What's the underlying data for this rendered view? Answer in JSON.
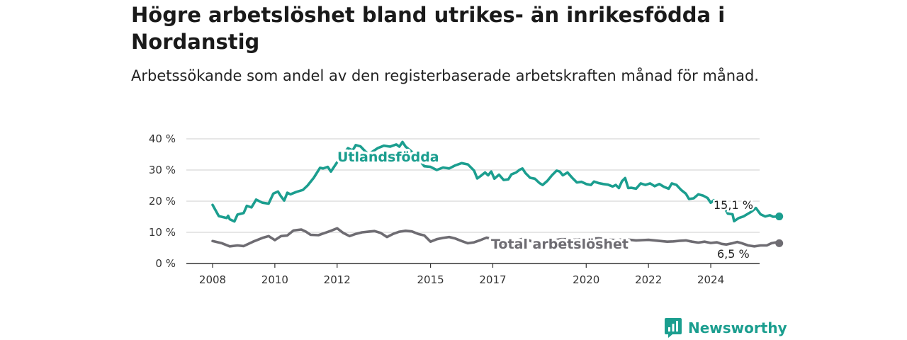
{
  "title": "Högre arbetslöshet bland utrikes- än inrikesfödda i Nordanstig",
  "subtitle": "Arbetssökande som andel av den registerbaserade arbetskraften månad för månad.",
  "brand": "Newsworthy",
  "colors": {
    "foreign_born": "#1b9e8f",
    "total": "#6e6c72",
    "grid": "#d6d6d6",
    "axis": "#333333"
  },
  "chart_data": {
    "type": "line",
    "y_ticks": [
      0,
      10,
      20,
      30,
      40
    ],
    "y_tick_labels": [
      "0 %",
      "10 %",
      "20 %",
      "30 %",
      "40 %"
    ],
    "x_ticks": [
      2008,
      2010,
      2012,
      2015,
      2017,
      2020,
      2022,
      2024
    ],
    "ylim": [
      0,
      40
    ],
    "xlim": [
      2007.25,
      2025.1
    ],
    "grid": true,
    "series": [
      {
        "name": "Utlandsfödda",
        "end_label": "15,1 %",
        "points": [
          [
            2008.0,
            18.8
          ],
          [
            2008.2,
            15.2
          ],
          [
            2008.45,
            14.6
          ],
          [
            2008.5,
            15.3
          ],
          [
            2008.55,
            14.2
          ],
          [
            2008.7,
            13.5
          ],
          [
            2008.8,
            15.7
          ],
          [
            2009.0,
            16.2
          ],
          [
            2009.1,
            18.5
          ],
          [
            2009.25,
            18.0
          ],
          [
            2009.4,
            20.5
          ],
          [
            2009.6,
            19.5
          ],
          [
            2009.8,
            19.2
          ],
          [
            2009.95,
            22.4
          ],
          [
            2010.1,
            23.1
          ],
          [
            2010.2,
            21.5
          ],
          [
            2010.3,
            20.2
          ],
          [
            2010.4,
            22.7
          ],
          [
            2010.5,
            22.2
          ],
          [
            2010.7,
            23.0
          ],
          [
            2010.9,
            23.6
          ],
          [
            2011.05,
            25.0
          ],
          [
            2011.25,
            27.5
          ],
          [
            2011.45,
            30.7
          ],
          [
            2011.55,
            30.5
          ],
          [
            2011.7,
            31.0
          ],
          [
            2011.8,
            29.5
          ],
          [
            2012.0,
            32.5
          ],
          [
            2012.2,
            35.1
          ],
          [
            2012.35,
            37.0
          ],
          [
            2012.5,
            36.3
          ],
          [
            2012.6,
            38.0
          ],
          [
            2012.75,
            37.6
          ],
          [
            2013.0,
            35.0
          ],
          [
            2013.3,
            37.0
          ],
          [
            2013.5,
            37.8
          ],
          [
            2013.7,
            37.5
          ],
          [
            2013.9,
            38.2
          ],
          [
            2014.0,
            37.5
          ],
          [
            2014.1,
            39.0
          ],
          [
            2014.2,
            37.5
          ],
          [
            2014.5,
            35.0
          ],
          [
            2014.8,
            31.2
          ],
          [
            2015.0,
            31.0
          ],
          [
            2015.2,
            30.0
          ],
          [
            2015.4,
            30.8
          ],
          [
            2015.6,
            30.5
          ],
          [
            2015.8,
            31.5
          ],
          [
            2016.0,
            32.2
          ],
          [
            2016.2,
            31.8
          ],
          [
            2016.4,
            29.8
          ],
          [
            2016.5,
            27.3
          ],
          [
            2016.6,
            28.0
          ],
          [
            2016.75,
            29.2
          ],
          [
            2016.85,
            28.3
          ],
          [
            2016.95,
            29.5
          ],
          [
            2017.05,
            27.2
          ],
          [
            2017.2,
            28.5
          ],
          [
            2017.35,
            26.8
          ],
          [
            2017.5,
            27.0
          ],
          [
            2017.6,
            28.6
          ],
          [
            2017.75,
            29.2
          ],
          [
            2017.85,
            30.0
          ],
          [
            2017.95,
            30.5
          ],
          [
            2018.05,
            29.0
          ],
          [
            2018.2,
            27.5
          ],
          [
            2018.35,
            27.2
          ],
          [
            2018.5,
            25.8
          ],
          [
            2018.6,
            25.2
          ],
          [
            2018.75,
            26.5
          ],
          [
            2018.9,
            28.3
          ],
          [
            2019.05,
            29.8
          ],
          [
            2019.15,
            29.5
          ],
          [
            2019.25,
            28.3
          ],
          [
            2019.4,
            29.2
          ],
          [
            2019.55,
            27.5
          ],
          [
            2019.7,
            26.0
          ],
          [
            2019.85,
            26.2
          ],
          [
            2020.0,
            25.5
          ],
          [
            2020.15,
            25.2
          ],
          [
            2020.25,
            26.3
          ],
          [
            2020.4,
            25.8
          ],
          [
            2020.55,
            25.5
          ],
          [
            2020.7,
            25.3
          ],
          [
            2020.85,
            24.7
          ],
          [
            2020.95,
            25.2
          ],
          [
            2021.05,
            24.2
          ],
          [
            2021.15,
            26.4
          ],
          [
            2021.25,
            27.4
          ],
          [
            2021.35,
            24.2
          ],
          [
            2021.45,
            24.3
          ],
          [
            2021.6,
            24.0
          ],
          [
            2021.75,
            25.7
          ],
          [
            2021.9,
            25.2
          ],
          [
            2022.05,
            25.7
          ],
          [
            2022.2,
            24.8
          ],
          [
            2022.35,
            25.5
          ],
          [
            2022.5,
            24.6
          ],
          [
            2022.65,
            24.0
          ],
          [
            2022.75,
            25.7
          ],
          [
            2022.9,
            25.2
          ],
          [
            2023.05,
            23.6
          ],
          [
            2023.2,
            22.4
          ],
          [
            2023.3,
            20.7
          ],
          [
            2023.45,
            20.9
          ],
          [
            2023.6,
            22.2
          ],
          [
            2023.75,
            21.8
          ],
          [
            2023.9,
            21.0
          ],
          [
            2024.0,
            19.5
          ],
          [
            2024.1,
            20.3
          ],
          [
            2024.3,
            17.6
          ],
          [
            2024.45,
            17.8
          ],
          [
            2024.55,
            16.0
          ],
          [
            2024.7,
            15.8
          ],
          [
            2024.75,
            13.6
          ],
          [
            2024.9,
            14.6
          ],
          [
            2025.05,
            15.1
          ],
          [
            2025.3,
            16.6
          ],
          [
            2025.45,
            17.8
          ],
          [
            2025.6,
            15.8
          ],
          [
            2025.75,
            15.1
          ],
          [
            2025.9,
            15.5
          ],
          [
            2026.0,
            15.0
          ],
          [
            2026.2,
            15.1
          ]
        ]
      },
      {
        "name": "Total arbetslöshet",
        "end_label": "6,5 %",
        "points": [
          [
            2008.0,
            7.2
          ],
          [
            2008.3,
            6.5
          ],
          [
            2008.55,
            5.5
          ],
          [
            2008.8,
            5.8
          ],
          [
            2009.0,
            5.6
          ],
          [
            2009.3,
            7.0
          ],
          [
            2009.6,
            8.2
          ],
          [
            2009.8,
            8.8
          ],
          [
            2010.0,
            7.5
          ],
          [
            2010.2,
            8.8
          ],
          [
            2010.4,
            9.0
          ],
          [
            2010.6,
            10.6
          ],
          [
            2010.85,
            10.9
          ],
          [
            2011.0,
            10.2
          ],
          [
            2011.15,
            9.2
          ],
          [
            2011.4,
            9.1
          ],
          [
            2011.6,
            9.8
          ],
          [
            2011.8,
            10.5
          ],
          [
            2012.0,
            11.3
          ],
          [
            2012.2,
            9.8
          ],
          [
            2012.4,
            8.8
          ],
          [
            2012.6,
            9.5
          ],
          [
            2012.8,
            10.0
          ],
          [
            2013.0,
            10.2
          ],
          [
            2013.2,
            10.4
          ],
          [
            2013.4,
            9.8
          ],
          [
            2013.6,
            8.5
          ],
          [
            2013.8,
            9.5
          ],
          [
            2014.0,
            10.2
          ],
          [
            2014.2,
            10.5
          ],
          [
            2014.4,
            10.3
          ],
          [
            2014.6,
            9.5
          ],
          [
            2014.8,
            9.0
          ],
          [
            2015.0,
            7.0
          ],
          [
            2015.2,
            7.8
          ],
          [
            2015.4,
            8.2
          ],
          [
            2015.6,
            8.5
          ],
          [
            2015.8,
            8.0
          ],
          [
            2016.0,
            7.2
          ],
          [
            2016.2,
            6.5
          ],
          [
            2016.4,
            6.8
          ],
          [
            2016.6,
            7.5
          ],
          [
            2016.8,
            8.3
          ],
          [
            2017.0,
            7.8
          ],
          [
            2017.2,
            6.5
          ],
          [
            2017.4,
            6.2
          ],
          [
            2017.6,
            6.5
          ],
          [
            2017.8,
            7.5
          ],
          [
            2018.0,
            8.0
          ],
          [
            2018.2,
            7.3
          ],
          [
            2018.4,
            6.5
          ],
          [
            2018.6,
            6.4
          ],
          [
            2018.8,
            7.0
          ],
          [
            2019.0,
            7.5
          ],
          [
            2019.2,
            7.8
          ],
          [
            2019.4,
            7.8
          ],
          [
            2019.6,
            7.6
          ],
          [
            2019.8,
            7.7
          ],
          [
            2020.0,
            7.8
          ],
          [
            2020.2,
            8.0
          ],
          [
            2020.4,
            8.1
          ],
          [
            2020.6,
            7.8
          ],
          [
            2020.8,
            7.6
          ],
          [
            2021.0,
            7.5
          ],
          [
            2021.2,
            7.8
          ],
          [
            2021.4,
            7.6
          ],
          [
            2021.6,
            7.4
          ],
          [
            2021.8,
            7.5
          ],
          [
            2022.0,
            7.6
          ],
          [
            2022.2,
            7.4
          ],
          [
            2022.4,
            7.2
          ],
          [
            2022.6,
            7.0
          ],
          [
            2022.8,
            7.1
          ],
          [
            2023.0,
            7.3
          ],
          [
            2023.2,
            7.4
          ],
          [
            2023.4,
            7.0
          ],
          [
            2023.6,
            6.7
          ],
          [
            2023.8,
            7.0
          ],
          [
            2024.0,
            6.6
          ],
          [
            2024.2,
            6.8
          ],
          [
            2024.35,
            6.3
          ],
          [
            2024.5,
            6.1
          ],
          [
            2024.7,
            6.5
          ],
          [
            2024.85,
            6.9
          ],
          [
            2025.0,
            6.5
          ],
          [
            2025.2,
            5.8
          ],
          [
            2025.4,
            5.5
          ],
          [
            2025.6,
            5.8
          ],
          [
            2025.8,
            5.8
          ],
          [
            2025.95,
            6.5
          ],
          [
            2026.1,
            6.8
          ],
          [
            2026.2,
            6.5
          ]
        ]
      }
    ]
  }
}
